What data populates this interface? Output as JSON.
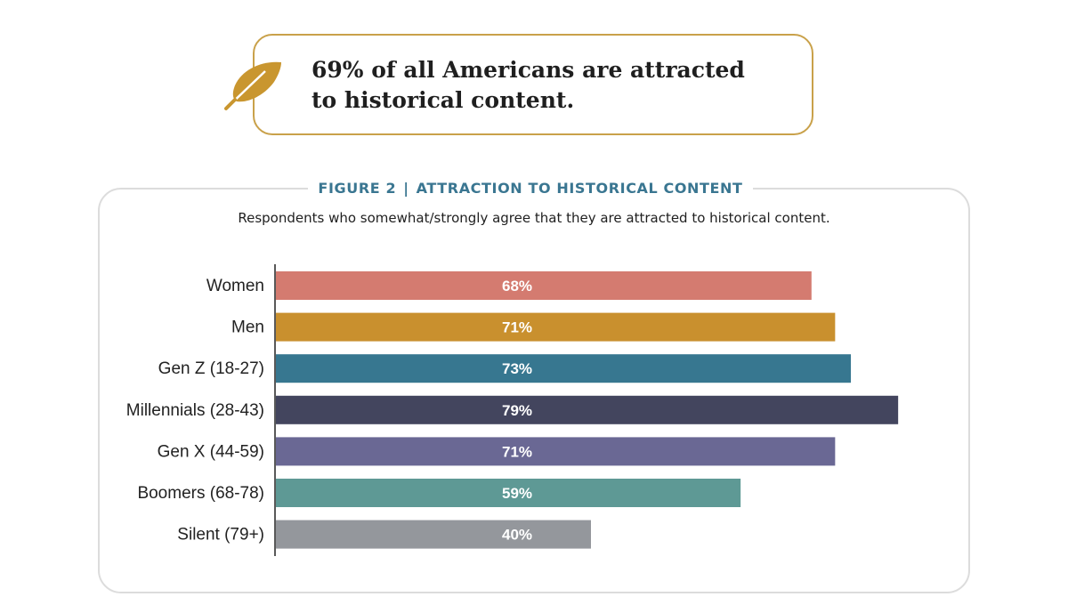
{
  "callout": {
    "line1": "69% of all Americans are attracted",
    "line2": "to historical content.",
    "icon": "feather-icon",
    "accent": "#c9962f"
  },
  "figure": {
    "label": "FIGURE 2",
    "separator": "|",
    "title": "ATTRACTION TO HISTORICAL CONTENT",
    "subtitle": "Respondents who somewhat/strongly agree that they are attracted to historical content."
  },
  "chart_data": {
    "type": "bar",
    "orientation": "horizontal",
    "title": "ATTRACTION TO HISTORICAL CONTENT",
    "categories": [
      "Women",
      "Men",
      "Gen Z (18-27)",
      "Millennials (28-43)",
      "Gen X (44-59)",
      "Boomers (68-78)",
      "Silent (79+)"
    ],
    "values": [
      68,
      71,
      73,
      79,
      71,
      59,
      40
    ],
    "value_labels": [
      "68%",
      "71%",
      "73%",
      "79%",
      "71%",
      "59%",
      "40%"
    ],
    "colors": [
      "#d47b70",
      "#c9902e",
      "#377790",
      "#43455e",
      "#6a6894",
      "#5e9995",
      "#94979c"
    ],
    "xlim": [
      0,
      100
    ],
    "unit": "%"
  }
}
